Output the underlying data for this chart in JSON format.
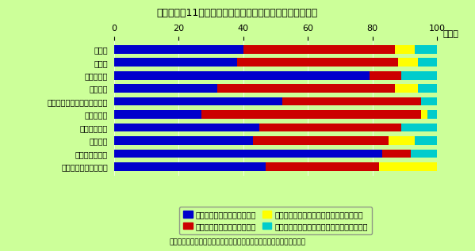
{
  "title": "第１－３－11図　我が国の技術力の米国の同業種との比較",
  "categories": [
    "全　体",
    "製造業",
    "医薬品工業",
    "機械工業",
    "通信・電子・電気計測器工業",
    "自動車工業",
    "精密機械工業",
    "非製造業",
    "情報サービス業",
    "研究開発・分析試験業"
  ],
  "blue": [
    40,
    38,
    79,
    32,
    52,
    27,
    45,
    43,
    83,
    47
  ],
  "red": [
    47,
    50,
    10,
    55,
    43,
    68,
    44,
    42,
    9,
    35
  ],
  "yellow": [
    6,
    6,
    0,
    7,
    0,
    2,
    0,
    8,
    0,
    18
  ],
  "cyan": [
    7,
    6,
    11,
    6,
    5,
    3,
    11,
    7,
    8,
    0
  ],
  "colors": [
    "#0000cc",
    "#cc0000",
    "#ffff00",
    "#00cccc"
  ],
  "legend_labels": [
    "現在、相手の方が優れている",
    "現在、競争相手となっている",
    "３～５年位で競争相手となってくると思う",
    "７～８年以上競争相手となってこないと思う"
  ],
  "bg_color": "#ccff99",
  "xlabel": "（％）",
  "source": "資料：科学技術庁「民間企業の研究活動に関する調査」（平成８年度）",
  "xlim": [
    0,
    100
  ],
  "xticks": [
    0,
    20,
    40,
    60,
    80,
    100
  ]
}
